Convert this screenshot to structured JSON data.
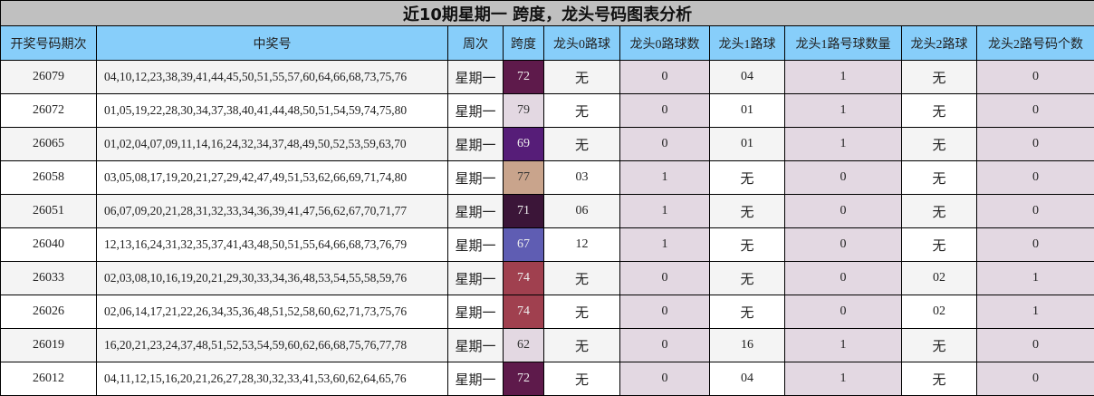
{
  "title": "近10期星期一 跨度，龙头号码图表分析",
  "headers": [
    "开奖号码期次",
    "中奖号",
    "周次",
    "跨度",
    "龙头0路球",
    "龙头0路球数",
    "龙头1路球",
    "龙头1路号球数量",
    "龙头2路球",
    "龙头2路号码个数"
  ],
  "rows": [
    {
      "issue": "26079",
      "numbers": "04,10,12,23,38,39,41,44,45,50,51,55,57,60,64,66,68,73,75,76",
      "week": "星期一",
      "span": "72",
      "span_color": "#5e1a4b",
      "span_text": "#eee",
      "r0": "无",
      "r0n": "0",
      "r1": "04",
      "r1n": "1",
      "r2": "无",
      "r2n": "0"
    },
    {
      "issue": "26072",
      "numbers": "01,05,19,22,28,30,34,37,38,40,41,44,48,50,51,54,59,74,75,80",
      "week": "星期一",
      "span": "79",
      "span_color": "#e3d8e2",
      "span_text": "#333",
      "r0": "无",
      "r0n": "0",
      "r1": "01",
      "r1n": "1",
      "r2": "无",
      "r2n": "0"
    },
    {
      "issue": "26065",
      "numbers": "01,02,04,07,09,11,14,16,24,32,34,37,48,49,50,52,53,59,63,70",
      "week": "星期一",
      "span": "69",
      "span_color": "#561d78",
      "span_text": "#eee",
      "r0": "无",
      "r0n": "0",
      "r1": "01",
      "r1n": "1",
      "r2": "无",
      "r2n": "0"
    },
    {
      "issue": "26058",
      "numbers": "03,05,08,17,19,20,21,27,29,42,47,49,51,53,62,66,69,71,74,80",
      "week": "星期一",
      "span": "77",
      "span_color": "#c9a48c",
      "span_text": "#333",
      "r0": "03",
      "r0n": "1",
      "r1": "无",
      "r1n": "0",
      "r2": "无",
      "r2n": "0"
    },
    {
      "issue": "26051",
      "numbers": "06,07,09,20,21,28,31,32,33,34,36,39,41,47,56,62,67,70,71,77",
      "week": "星期一",
      "span": "71",
      "span_color": "#3b1538",
      "span_text": "#eee",
      "r0": "06",
      "r0n": "1",
      "r1": "无",
      "r1n": "0",
      "r2": "无",
      "r2n": "0"
    },
    {
      "issue": "26040",
      "numbers": "12,13,16,24,31,32,35,37,41,43,48,50,51,55,64,66,68,73,76,79",
      "week": "星期一",
      "span": "67",
      "span_color": "#5f5db3",
      "span_text": "#eee",
      "r0": "12",
      "r0n": "1",
      "r1": "无",
      "r1n": "0",
      "r2": "无",
      "r2n": "0"
    },
    {
      "issue": "26033",
      "numbers": "02,03,08,10,16,19,20,21,29,30,33,34,36,48,53,54,55,58,59,76",
      "week": "星期一",
      "span": "74",
      "span_color": "#a0404f",
      "span_text": "#eee",
      "r0": "无",
      "r0n": "0",
      "r1": "无",
      "r1n": "0",
      "r2": "02",
      "r2n": "1"
    },
    {
      "issue": "26026",
      "numbers": "02,06,14,17,21,22,26,34,35,36,48,51,52,58,60,62,71,73,75,76",
      "week": "星期一",
      "span": "74",
      "span_color": "#a0404f",
      "span_text": "#eee",
      "r0": "无",
      "r0n": "0",
      "r1": "无",
      "r1n": "0",
      "r2": "02",
      "r2n": "1"
    },
    {
      "issue": "26019",
      "numbers": "16,20,21,23,24,37,48,51,52,53,54,59,60,62,66,68,75,76,77,78",
      "week": "星期一",
      "span": "62",
      "span_color": "#e3d8e2",
      "span_text": "#333",
      "r0": "无",
      "r0n": "0",
      "r1": "16",
      "r1n": "1",
      "r2": "无",
      "r2n": "0"
    },
    {
      "issue": "26012",
      "numbers": "04,11,12,15,16,20,21,26,27,28,30,32,33,41,53,60,62,64,65,76",
      "week": "星期一",
      "span": "72",
      "span_color": "#5e1a4b",
      "span_text": "#eee",
      "r0": "无",
      "r0n": "0",
      "r1": "04",
      "r1n": "1",
      "r2": "无",
      "r2n": "0"
    }
  ]
}
